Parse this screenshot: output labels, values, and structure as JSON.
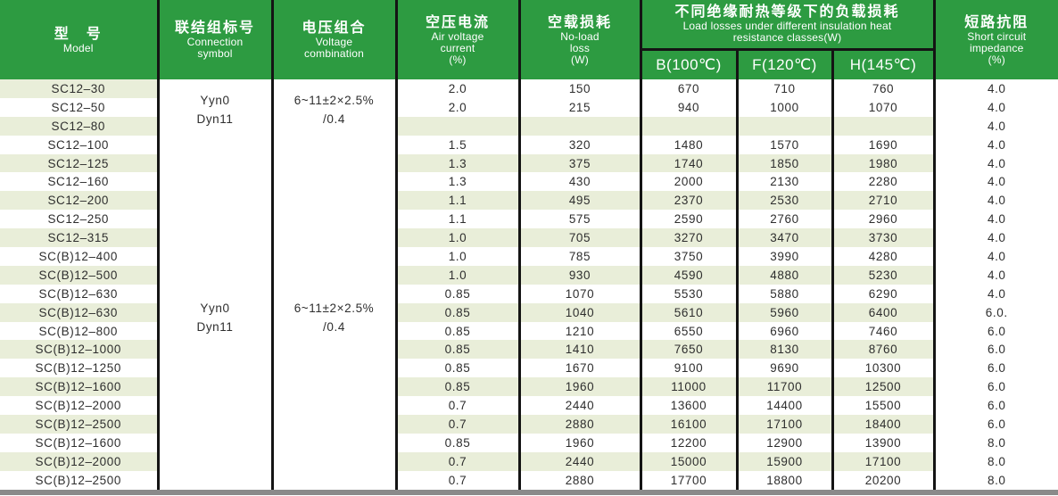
{
  "colors": {
    "header_green": "#2d9b41",
    "stripe": "#e9eed9",
    "border_black": "#141414",
    "bottom_bar_gray": "#8a8a8a"
  },
  "header": {
    "model": {
      "zh": "型　号",
      "en1": "Model"
    },
    "connection": {
      "zh": "联结组标号",
      "en1": "Connection",
      "en2": "symbol"
    },
    "voltage": {
      "zh": "电压组合",
      "en1": "Voltage",
      "en2": "combination"
    },
    "air": {
      "zh": "空压电流",
      "en1": "Air voltage",
      "en2": "current",
      "en3": "(%)"
    },
    "noload": {
      "zh": "空载损耗",
      "en1": "No-load",
      "en2": "loss",
      "en3": "(W)"
    },
    "group": {
      "zh": "不同绝缘耐热等级下的负载损耗",
      "en1": "Load losses under different insulation heat",
      "en2": "resistance classes(W)",
      "subcols": [
        "B(100℃)",
        "F(120℃)",
        "H(145℃)"
      ]
    },
    "impedance": {
      "zh": "短路抗阻",
      "en1": "Short circuit",
      "en2": "impedance",
      "en3": "(%)"
    }
  },
  "merged": {
    "connection_blocks": [
      [
        "Yyn0",
        "Dyn11"
      ],
      [
        "Yyn0",
        "Dyn11"
      ]
    ],
    "voltage_blocks": [
      [
        "6~11±2×2.5%",
        "/0.4"
      ],
      [
        "6~11±2×2.5%",
        "/0.4"
      ]
    ]
  },
  "rows": [
    {
      "model": "SC12–30",
      "air": "2.0",
      "noload": "150",
      "b": "670",
      "f": "710",
      "h": "760",
      "imp": "4.0"
    },
    {
      "model": "SC12–50",
      "air": "2.0",
      "noload": "215",
      "b": "940",
      "f": "1000",
      "h": "1070",
      "imp": "4.0"
    },
    {
      "model": "SC12–80",
      "air": "",
      "noload": "",
      "b": "",
      "f": "",
      "h": "",
      "imp": "4.0"
    },
    {
      "model": "SC12–100",
      "air": "1.5",
      "noload": "320",
      "b": "1480",
      "f": "1570",
      "h": "1690",
      "imp": "4.0"
    },
    {
      "model": "SC12–125",
      "air": "1.3",
      "noload": "375",
      "b": "1740",
      "f": "1850",
      "h": "1980",
      "imp": "4.0"
    },
    {
      "model": "SC12–160",
      "air": "1.3",
      "noload": "430",
      "b": "2000",
      "f": "2130",
      "h": "2280",
      "imp": "4.0"
    },
    {
      "model": "SC12–200",
      "air": "1.1",
      "noload": "495",
      "b": "2370",
      "f": "2530",
      "h": "2710",
      "imp": "4.0"
    },
    {
      "model": "SC12–250",
      "air": "1.1",
      "noload": "575",
      "b": "2590",
      "f": "2760",
      "h": "2960",
      "imp": "4.0"
    },
    {
      "model": "SC12–315",
      "air": "1.0",
      "noload": "705",
      "b": "3270",
      "f": "3470",
      "h": "3730",
      "imp": "4.0"
    },
    {
      "model": "SC(B)12–400",
      "air": "1.0",
      "noload": "785",
      "b": "3750",
      "f": "3990",
      "h": "4280",
      "imp": "4.0"
    },
    {
      "model": "SC(B)12–500",
      "air": "1.0",
      "noload": "930",
      "b": "4590",
      "f": "4880",
      "h": "5230",
      "imp": "4.0"
    },
    {
      "model": "SC(B)12–630",
      "air": "0.85",
      "noload": "1070",
      "b": "5530",
      "f": "5880",
      "h": "6290",
      "imp": "4.0"
    },
    {
      "model": "SC(B)12–630",
      "air": "0.85",
      "noload": "1040",
      "b": "5610",
      "f": "5960",
      "h": "6400",
      "imp": "6.0."
    },
    {
      "model": "SC(B)12–800",
      "air": "0.85",
      "noload": "1210",
      "b": "6550",
      "f": "6960",
      "h": "7460",
      "imp": "6.0"
    },
    {
      "model": "SC(B)12–1000",
      "air": "0.85",
      "noload": "1410",
      "b": "7650",
      "f": "8130",
      "h": "8760",
      "imp": "6.0"
    },
    {
      "model": "SC(B)12–1250",
      "air": "0.85",
      "noload": "1670",
      "b": "9100",
      "f": "9690",
      "h": "10300",
      "imp": "6.0"
    },
    {
      "model": "SC(B)12–1600",
      "air": "0.85",
      "noload": "1960",
      "b": "11000",
      "f": "11700",
      "h": "12500",
      "imp": "6.0"
    },
    {
      "model": "SC(B)12–2000",
      "air": "0.7",
      "noload": "2440",
      "b": "13600",
      "f": "14400",
      "h": "15500",
      "imp": "6.0"
    },
    {
      "model": "SC(B)12–2500",
      "air": "0.7",
      "noload": "2880",
      "b": "16100",
      "f": "17100",
      "h": "18400",
      "imp": "6.0"
    },
    {
      "model": "SC(B)12–1600",
      "air": "0.85",
      "noload": "1960",
      "b": "12200",
      "f": "12900",
      "h": "13900",
      "imp": "8.0"
    },
    {
      "model": "SC(B)12–2000",
      "air": "0.7",
      "noload": "2440",
      "b": "15000",
      "f": "15900",
      "h": "17100",
      "imp": "8.0"
    },
    {
      "model": "SC(B)12–2500",
      "air": "0.7",
      "noload": "2880",
      "b": "17700",
      "f": "18800",
      "h": "20200",
      "imp": "8.0"
    }
  ]
}
